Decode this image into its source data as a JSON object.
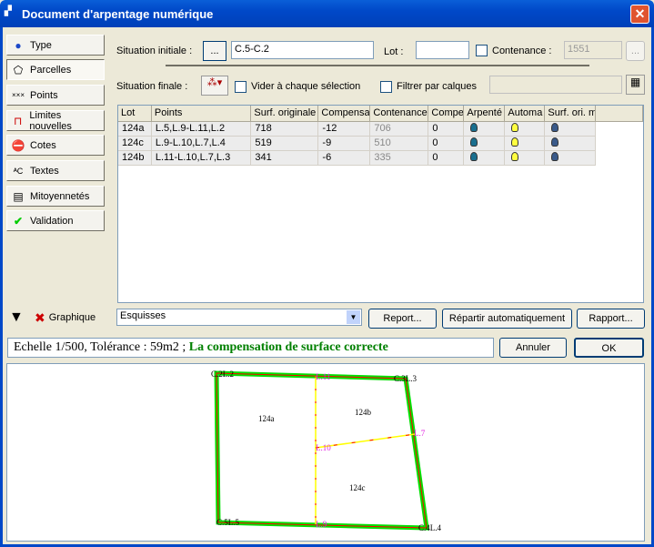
{
  "window": {
    "title": "Document d'arpentage numérique",
    "close": "✕"
  },
  "sidebar": {
    "items": [
      {
        "label": "Type",
        "icon": "help-icon"
      },
      {
        "label": "Parcelles",
        "icon": "parcel-icon"
      },
      {
        "label": "Points",
        "icon": "points-icon"
      },
      {
        "label": "Limites nouvelles",
        "icon": "limits-icon"
      },
      {
        "label": "Cotes",
        "icon": "no-entry-icon"
      },
      {
        "label": "Textes",
        "icon": "text-icon"
      },
      {
        "label": "Mitoyennetés",
        "icon": "hatch-icon"
      },
      {
        "label": "Validation",
        "icon": "check-icon"
      }
    ],
    "graphique": "Graphique"
  },
  "form": {
    "situation_initiale_label": "Situation initiale :",
    "browse": "...",
    "situation_initiale_value": "C.5-C.2",
    "lot_label": "Lot :",
    "lot_value": "",
    "contenance_label": "Contenance :",
    "contenance_value": "1551",
    "contenance_btn": "...",
    "situation_finale_label": "Situation finale :",
    "vider_label": "Vider à chaque sélection",
    "vider_checked": false,
    "filtrer_label": "Filtrer par calques",
    "filtrer_checked": false,
    "contenance_checked": false,
    "calques_value": ""
  },
  "table": {
    "columns": [
      "Lot",
      "Points",
      "Surf. originale",
      "Compensa",
      "Contenance",
      "Compe",
      "Arpenté",
      "Automa",
      "Surf. ori. m"
    ],
    "rows": [
      [
        "124a",
        "L.5,L.9-L.11,L.2",
        "718",
        "-12",
        "706",
        "0"
      ],
      [
        "124c",
        "L.9-L.10,L.7,L.4",
        "519",
        "-9",
        "510",
        "0"
      ],
      [
        "124b",
        "L.11-L.10,L.7,L.3",
        "341",
        "-6",
        "335",
        "0"
      ]
    ],
    "colors": {
      "arpente": "#1a6f8f",
      "automa": "#ffff40",
      "surf": "#3a5a8a"
    }
  },
  "toolbar": {
    "layer_select": "Esquisses",
    "report": "Report...",
    "repartir": "Répartir automatiquement",
    "rapport": "Rapport..."
  },
  "status": {
    "prefix": "Echelle 1/500, Tolérance : 59m2 ;",
    "message": "La compensation de surface correcte",
    "message_color": "#008000"
  },
  "actions": {
    "annuler": "Annuler",
    "ok": "OK"
  },
  "drawing": {
    "labels": {
      "c2": "C.2L.2",
      "l11": "L.11",
      "c3": "C.3L.3",
      "l7": "L.7",
      "l10": "L.10",
      "c5": "C.5L.5",
      "l9": "L.9",
      "c4": "C.4L.4"
    },
    "lots": {
      "a": "124a",
      "b": "124b",
      "c": "124c"
    },
    "colors": {
      "boundary": "#00e000",
      "line": "#ff0000",
      "division": "#ffff00",
      "point_label": "#e020e0"
    }
  }
}
